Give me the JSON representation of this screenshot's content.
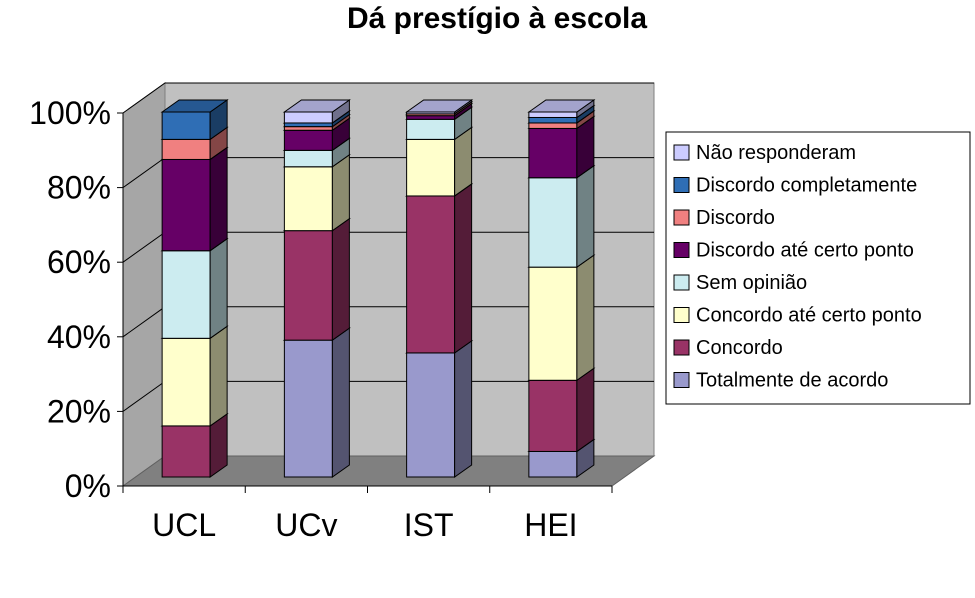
{
  "chart_data": {
    "type": "bar",
    "stacked": true,
    "percent_stacked": true,
    "three_d": true,
    "title": "Dá prestígio à escola",
    "categories": [
      "UCL",
      "UCv",
      "IST",
      "HEI"
    ],
    "ylim": [
      0,
      100
    ],
    "yticks": [
      "0%",
      "20%",
      "40%",
      "60%",
      "80%",
      "100%"
    ],
    "grid": true,
    "legend_position": "right",
    "series": [
      {
        "name": "Totalmente de acordo",
        "color": "#9999cc",
        "values": [
          0,
          37.5,
          34,
          7
        ]
      },
      {
        "name": "Concordo",
        "color": "#993366",
        "values": [
          14,
          30,
          43,
          19.5
        ]
      },
      {
        "name": "Concordo até certo ponto",
        "color": "#ffffcc",
        "values": [
          24,
          17.5,
          15.5,
          31
        ]
      },
      {
        "name": "Sem opinião",
        "color": "#ccecf0",
        "values": [
          24,
          4.5,
          5.5,
          24.5
        ]
      },
      {
        "name": "Discordo até certo ponto",
        "color": "#660066",
        "values": [
          25,
          5.5,
          1,
          13.5
        ]
      },
      {
        "name": "Discordo",
        "color": "#f08080",
        "values": [
          5.5,
          1,
          0.5,
          1.5
        ]
      },
      {
        "name": "Discordo completamente",
        "color": "#2f6eb5",
        "values": [
          7.5,
          1,
          0,
          1.5
        ]
      },
      {
        "name": "Não responderam",
        "color": "#ccccff",
        "values": [
          0,
          3,
          0.5,
          1.5
        ]
      }
    ]
  }
}
